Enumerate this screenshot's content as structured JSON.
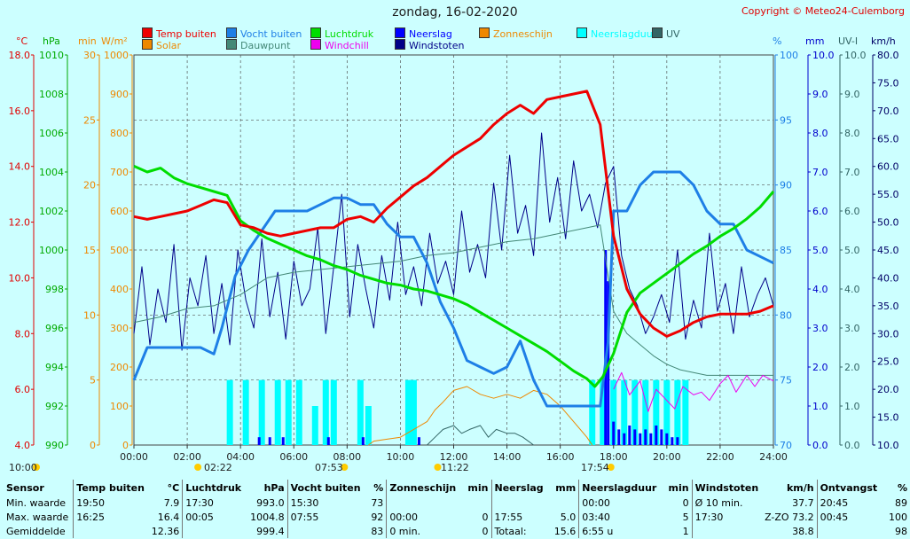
{
  "title": "zondag, 16-02-2020",
  "copyright": "Copyright © Meteo24-Culemborg",
  "legend": [
    {
      "label": "Temp buiten",
      "color": "#ee0000"
    },
    {
      "label": "Vocht buiten",
      "color": "#1e7fe6"
    },
    {
      "label": "Luchtdruk",
      "color": "#00dd00"
    },
    {
      "label": "Neerslag",
      "color": "#0000ff"
    },
    {
      "label": "Zonneschijn",
      "color": "#ee8800"
    },
    {
      "label": "Neerslagduur",
      "color": "#00ffff"
    },
    {
      "label": "UV",
      "color": "#336666"
    },
    {
      "label": "Solar",
      "color": "#ee8800"
    },
    {
      "label": "Dauwpunt",
      "color": "#448877"
    },
    {
      "label": "Windchill",
      "color": "#ee00ee"
    },
    {
      "label": "Windstoten",
      "color": "#000088"
    }
  ],
  "axis_units": {
    "temp": "°C",
    "pressure": "hPa",
    "sunmin": "min",
    "solar": "W/m²",
    "humidity": "%",
    "rain": "mm",
    "uv": "UV-I",
    "wind": "km/h"
  },
  "sun_times": {
    "sunrise_left": "10:00",
    "rise": "02:22",
    "time_mid1": "07:53",
    "time_mid2": "11:22",
    "time_end": "17:54"
  },
  "colors": {
    "background": "#ccffff",
    "plot": "#ccffff",
    "grid": "#555555"
  },
  "chart_data": {
    "type": "line",
    "x_range": [
      "00:00",
      "24:00"
    ],
    "xticks": [
      "00:00",
      "02:00",
      "04:00",
      "06:00",
      "08:00",
      "10:00",
      "12:00",
      "14:00",
      "16:00",
      "18:00",
      "20:00",
      "22:00",
      "24:00"
    ],
    "axes": {
      "temp": {
        "min": 4,
        "max": 18,
        "ticks": [
          "18.0",
          "16.0",
          "14.0",
          "12.0",
          "10.0",
          "8.0",
          "6.0",
          "4.0"
        ]
      },
      "pressure": {
        "min": 990,
        "max": 1010,
        "ticks": [
          "1010",
          "1008",
          "1006",
          "1004",
          "1002",
          "1000",
          "998",
          "996",
          "994",
          "992",
          "990"
        ]
      },
      "sunmin": {
        "min": 0,
        "max": 30,
        "ticks": [
          "30",
          "25",
          "20",
          "15",
          "10",
          "5",
          "0"
        ]
      },
      "solar": {
        "min": 0,
        "max": 1000,
        "ticks": [
          "1000",
          "900",
          "800",
          "700",
          "600",
          "500",
          "400",
          "300",
          "200",
          "100",
          "0"
        ]
      },
      "humidity": {
        "min": 70,
        "max": 100,
        "ticks": [
          "100",
          "95",
          "90",
          "85",
          "80",
          "75",
          "70"
        ]
      },
      "rain": {
        "min": 0,
        "max": 10,
        "ticks": [
          "10.0",
          "9.0",
          "8.0",
          "7.0",
          "6.0",
          "5.0",
          "4.0",
          "3.0",
          "2.0",
          "1.0",
          "0.0"
        ]
      },
      "uv": {
        "min": 0,
        "max": 10,
        "ticks": [
          "10.0",
          "9.0",
          "8.0",
          "7.0",
          "6.0",
          "5.0",
          "4.0",
          "3.0",
          "2.0",
          "1.0",
          "0.0"
        ]
      },
      "wind": {
        "min": 10,
        "max": 80,
        "ticks": [
          "80.0",
          "75.0",
          "70.0",
          "65.0",
          "60.0",
          "55.0",
          "50.0",
          "45.0",
          "40.0",
          "35.0",
          "30.0",
          "25.0",
          "20.0",
          "15.0",
          "10.0"
        ]
      }
    },
    "series": [
      {
        "name": "Temp buiten",
        "axis": "temp",
        "color": "#ee0000",
        "x": [
          0,
          0.5,
          1,
          1.5,
          2,
          2.5,
          3,
          3.5,
          4,
          4.5,
          5,
          5.5,
          6,
          6.5,
          7,
          7.5,
          8,
          8.5,
          9,
          9.5,
          10,
          10.5,
          11,
          11.5,
          12,
          12.5,
          13,
          13.5,
          14,
          14.5,
          15,
          15.5,
          16,
          16.5,
          17,
          17.5,
          18,
          18.5,
          19,
          19.5,
          20,
          20.5,
          21,
          21.5,
          22,
          22.5,
          23,
          23.5,
          24
        ],
        "y": [
          12.2,
          12.1,
          12.2,
          12.3,
          12.4,
          12.6,
          12.8,
          12.7,
          11.9,
          11.8,
          11.6,
          11.5,
          11.6,
          11.7,
          11.8,
          11.8,
          12.1,
          12.2,
          12.0,
          12.5,
          12.9,
          13.3,
          13.6,
          14.0,
          14.4,
          14.7,
          15.0,
          15.5,
          15.9,
          16.2,
          15.9,
          16.4,
          16.5,
          16.6,
          16.7,
          15.5,
          11.5,
          9.6,
          8.7,
          8.2,
          7.9,
          8.1,
          8.4,
          8.6,
          8.7,
          8.7,
          8.7,
          8.8,
          9.0
        ]
      },
      {
        "name": "Vocht buiten",
        "axis": "humidity",
        "color": "#1e7fe6",
        "x": [
          0,
          0.5,
          1,
          1.5,
          2,
          2.5,
          3,
          3.3,
          3.8,
          4.3,
          4.8,
          5.3,
          5.6,
          6,
          6.5,
          7,
          7.5,
          8,
          8.5,
          9,
          9.5,
          10,
          10.5,
          11,
          11.5,
          12,
          12.5,
          13,
          13.5,
          14,
          14.5,
          15,
          15.5,
          16,
          16.5,
          17,
          17.5,
          17.8,
          18,
          18.5,
          19,
          19.5,
          20,
          20.5,
          21,
          21.5,
          22,
          22.5,
          23,
          23.5,
          24
        ],
        "y": [
          75,
          77.5,
          77.5,
          77.5,
          77.5,
          77.5,
          77,
          79,
          83,
          85,
          86.5,
          88,
          88,
          88,
          88,
          88.5,
          89,
          89,
          88.5,
          88.5,
          87,
          86,
          86,
          84,
          81,
          79,
          76.5,
          76,
          75.5,
          76,
          78,
          75,
          73,
          73,
          73,
          73,
          73,
          78,
          88,
          88,
          90,
          91,
          91,
          91,
          90,
          88,
          87,
          87,
          85,
          84.5,
          84
        ]
      },
      {
        "name": "Luchtdruk",
        "axis": "pressure",
        "color": "#00dd00",
        "x": [
          0,
          0.5,
          1,
          1.5,
          2,
          2.5,
          3,
          3.5,
          4,
          4.5,
          5,
          5.5,
          6,
          6.5,
          7,
          7.5,
          8,
          8.5,
          9,
          9.5,
          10,
          10.5,
          11,
          11.5,
          12,
          12.5,
          13,
          13.5,
          14,
          14.5,
          15,
          15.5,
          16,
          16.5,
          17,
          17.3,
          17.6,
          18,
          18.5,
          19,
          19.5,
          20,
          20.5,
          21,
          21.5,
          22,
          22.5,
          23,
          23.5,
          24
        ],
        "y": [
          1004.3,
          1004.0,
          1004.2,
          1003.7,
          1003.4,
          1003.2,
          1003.0,
          1002.8,
          1001.5,
          1001.0,
          1000.6,
          1000.3,
          1000.0,
          999.7,
          999.5,
          999.2,
          999.0,
          998.7,
          998.5,
          998.3,
          998.2,
          998.0,
          997.9,
          997.7,
          997.5,
          997.2,
          996.8,
          996.4,
          996.0,
          995.6,
          995.2,
          994.8,
          994.3,
          993.8,
          993.4,
          993.0,
          993.5,
          994.7,
          996.8,
          997.8,
          998.3,
          998.8,
          999.3,
          999.8,
          1000.2,
          1000.7,
          1001.1,
          1001.6,
          1002.2,
          1003.0
        ]
      },
      {
        "name": "Dauwpunt",
        "axis": "temp",
        "color": "#448877",
        "x": [
          0,
          1,
          2,
          3,
          4,
          5,
          6,
          7,
          8,
          9,
          10,
          11,
          12,
          13,
          14,
          15,
          16,
          17,
          17.5,
          18,
          18.5,
          19,
          19.5,
          20,
          20.5,
          21,
          21.5,
          22,
          22.5,
          23,
          23.5,
          24
        ],
        "y": [
          8.4,
          8.6,
          8.9,
          9.0,
          9.4,
          10.0,
          10.2,
          10.3,
          10.4,
          10.5,
          10.6,
          10.8,
          10.9,
          11.1,
          11.3,
          11.4,
          11.6,
          11.8,
          11.9,
          8.8,
          8.0,
          7.6,
          7.2,
          6.9,
          6.7,
          6.6,
          6.5,
          6.5,
          6.5,
          6.5,
          6.5,
          6.5
        ]
      },
      {
        "name": "Windchill",
        "axis": "temp",
        "color": "#ee00ee",
        "x": [
          18,
          18.3,
          18.6,
          19,
          19.3,
          19.6,
          20,
          20.3,
          20.6,
          21,
          21.3,
          21.6,
          22,
          22.3,
          22.6,
          23,
          23.3,
          23.6,
          24
        ],
        "y": [
          6.0,
          6.6,
          5.8,
          6.3,
          5.2,
          6.0,
          5.6,
          5.3,
          6.1,
          5.8,
          5.9,
          5.6,
          6.2,
          6.5,
          5.9,
          6.5,
          6.1,
          6.5,
          6.3
        ]
      },
      {
        "name": "Solar",
        "axis": "solar",
        "color": "#ee8800",
        "x": [
          8.8,
          9,
          9.5,
          10,
          10.5,
          11,
          11.3,
          11.6,
          12,
          12.5,
          13,
          13.5,
          14,
          14.5,
          15,
          15.5,
          16,
          16.5,
          17,
          17.2
        ],
        "y": [
          0,
          10,
          15,
          20,
          40,
          60,
          90,
          110,
          140,
          150,
          130,
          120,
          130,
          120,
          140,
          130,
          100,
          60,
          20,
          0
        ]
      },
      {
        "name": "UV",
        "axis": "uv",
        "color": "#336666",
        "x": [
          11,
          11.3,
          11.6,
          12,
          12.3,
          12.6,
          13,
          13.3,
          13.6,
          14,
          14.3,
          14.6,
          15
        ],
        "y": [
          0,
          0.2,
          0.4,
          0.5,
          0.3,
          0.4,
          0.5,
          0.2,
          0.4,
          0.3,
          0.3,
          0.2,
          0
        ]
      },
      {
        "name": "Windstoten",
        "axis": "wind",
        "color": "#000088",
        "x": [
          0,
          0.3,
          0.6,
          0.9,
          1.2,
          1.5,
          1.8,
          2.1,
          2.4,
          2.7,
          3,
          3.3,
          3.6,
          3.9,
          4.2,
          4.5,
          4.8,
          5.1,
          5.4,
          5.7,
          6,
          6.3,
          6.6,
          6.9,
          7.2,
          7.5,
          7.8,
          8.1,
          8.4,
          8.7,
          9,
          9.3,
          9.6,
          9.9,
          10.2,
          10.5,
          10.8,
          11.1,
          11.4,
          11.7,
          12,
          12.3,
          12.6,
          12.9,
          13.2,
          13.5,
          13.8,
          14.1,
          14.4,
          14.7,
          15,
          15.3,
          15.6,
          15.9,
          16.2,
          16.5,
          16.8,
          17.1,
          17.4,
          17.7,
          18,
          18.3,
          18.6,
          18.9,
          19.2,
          19.5,
          19.8,
          20.1,
          20.4,
          20.7,
          21,
          21.3,
          21.6,
          21.9,
          22.2,
          22.5,
          22.8,
          23.1,
          23.4,
          23.7,
          24
        ],
        "y": [
          30,
          42,
          28,
          38,
          32,
          46,
          27,
          40,
          35,
          44,
          30,
          39,
          28,
          45,
          36,
          31,
          47,
          33,
          41,
          29,
          43,
          35,
          38,
          49,
          30,
          42,
          55,
          33,
          46,
          38,
          31,
          44,
          36,
          50,
          37,
          42,
          35,
          48,
          39,
          43,
          37,
          52,
          41,
          46,
          40,
          57,
          45,
          62,
          48,
          53,
          44,
          66,
          50,
          58,
          47,
          61,
          52,
          55,
          49,
          57,
          60,
          44,
          38,
          35,
          30,
          33,
          37,
          32,
          45,
          29,
          36,
          31,
          48,
          34,
          39,
          30,
          42,
          33,
          37,
          40,
          35
        ]
      }
    ],
    "bars": [
      {
        "name": "Neerslagduur",
        "axis": "sunmin",
        "color": "#00ffff",
        "x": [
          3.6,
          4.2,
          4.8,
          5.4,
          5.8,
          6.2,
          6.8,
          7.2,
          7.5,
          8.5,
          8.8,
          10.3,
          10.5,
          17.2,
          17.6,
          18,
          18.4,
          18.8,
          19.2,
          19.6,
          20,
          20.4,
          20.7
        ],
        "y": [
          5,
          5,
          5,
          5,
          5,
          5,
          3,
          5,
          5,
          5,
          3,
          5,
          5,
          5,
          5,
          5,
          5,
          5,
          5,
          5,
          5,
          5,
          5
        ]
      },
      {
        "name": "Neerslag",
        "axis": "rain",
        "color": "#0000ff",
        "x": [
          4.7,
          5.1,
          5.6,
          7.3,
          8.6,
          10.7,
          17.7,
          17.8,
          18.0,
          18.2,
          18.4,
          18.6,
          18.8,
          19.0,
          19.2,
          19.4,
          19.6,
          19.8,
          20.0,
          20.2,
          20.4
        ],
        "y": [
          0.2,
          0.2,
          0.2,
          0.2,
          0.2,
          0.2,
          5.0,
          4.2,
          0.6,
          0.4,
          0.3,
          0.5,
          0.4,
          0.3,
          0.4,
          0.3,
          0.5,
          0.4,
          0.3,
          0.2,
          0.2
        ]
      }
    ]
  },
  "stats": {
    "headers": [
      "Sensor",
      "Temp buiten",
      "°C",
      "Luchtdruk",
      "hPa",
      "Vocht buiten",
      "%",
      "Zonneschijn",
      "min",
      "Neerslag",
      "mm",
      "Neerslagduur",
      "min",
      "Windstoten",
      "km/h",
      "Ontvangst",
      "%"
    ],
    "rows": [
      [
        "Min. waarde",
        "19:50",
        "7.9",
        "17:30",
        "993.0",
        "15:30",
        "73",
        "",
        "",
        "",
        "",
        "00:00",
        "0",
        "Ø 10 min.",
        "37.7",
        "20:45",
        "89"
      ],
      [
        "Max. waarde",
        "16:25",
        "16.4",
        "00:05",
        "1004.8",
        "07:55",
        "92",
        "00:00",
        "0",
        "17:55",
        "5.0",
        "03:40",
        "5",
        "17:30",
        "Z-ZO 73.2",
        "00:45",
        "100"
      ],
      [
        "Gemiddelde",
        "",
        "12.36",
        "",
        "999.4",
        "",
        "83",
        "0 min.",
        "0",
        "Totaal:",
        "15.6",
        "6:55 u",
        "1",
        "",
        "38.8",
        "",
        "98"
      ]
    ]
  }
}
